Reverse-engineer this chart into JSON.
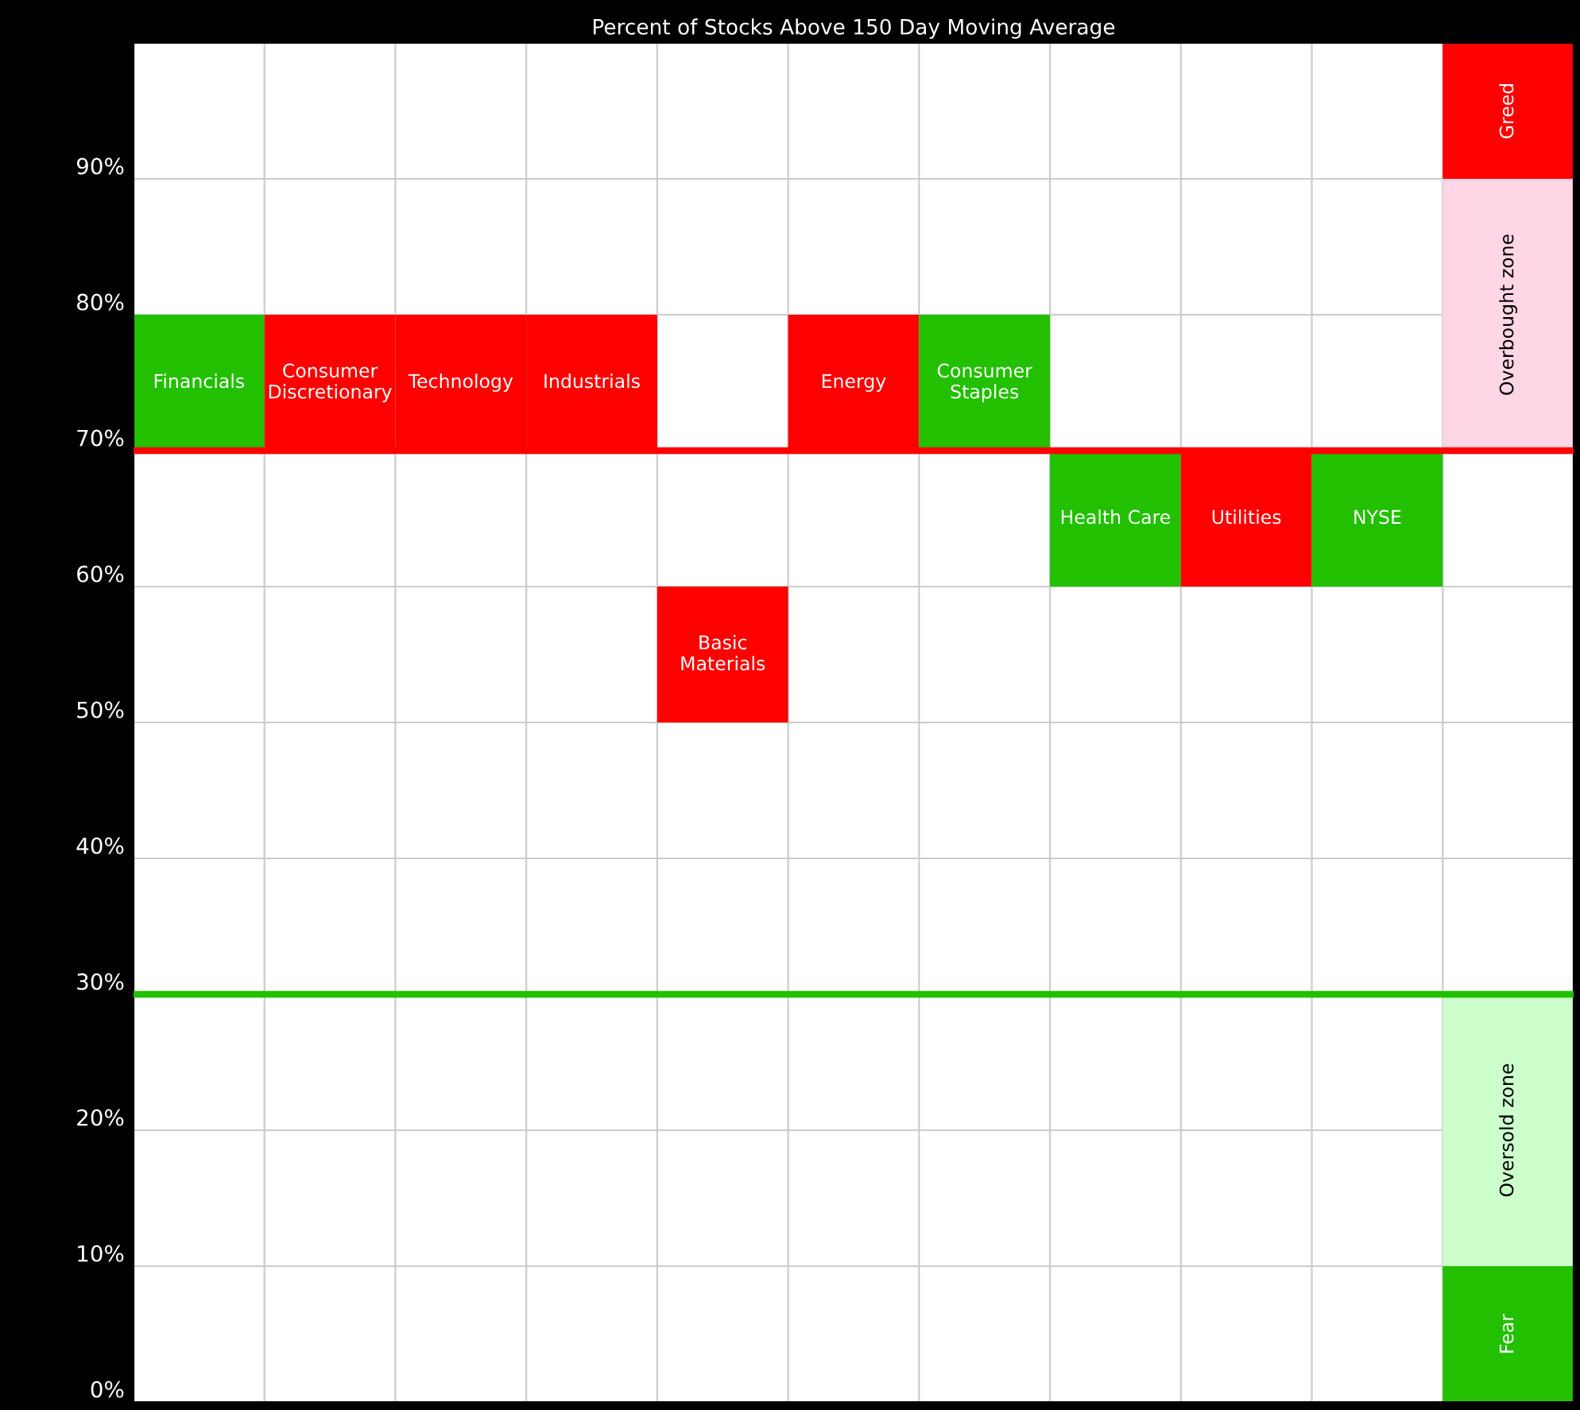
{
  "chart_data": {
    "type": "bar",
    "title": "Percent of Stocks Above 150 Day Moving Average",
    "categories": [
      null,
      null,
      null,
      null,
      null,
      null,
      null,
      null,
      null,
      null,
      null
    ],
    "series": [
      {
        "values": [
          10,
          10,
          10,
          10,
          10,
          10,
          10,
          10,
          10,
          10,
          null
        ],
        "base": [
          70,
          70,
          70,
          70,
          50,
          70,
          70,
          60,
          60,
          60,
          null
        ],
        "colors": [
          "#22c000",
          "#ff0000",
          "#ff0000",
          "#ff0000",
          "#ff0000",
          "#ff0000",
          "#22c000",
          "#22c000",
          "#ff0000",
          "#22c000",
          null
        ],
        "value_labels": [
          "Financials",
          "Consumer\nDiscretionary",
          "Technology",
          "Industrials",
          "Basic\nMaterials",
          "Energy",
          "Consumer\nStaples",
          "Health Care",
          "Utilities",
          "NYSE",
          null
        ]
      },
      {
        "values": [
          null,
          null,
          null,
          null,
          null,
          null,
          null,
          null,
          null,
          null,
          10
        ],
        "base": [
          null,
          null,
          null,
          null,
          null,
          null,
          null,
          null,
          null,
          null,
          0
        ],
        "color": "#22c000",
        "value_labels": [
          null,
          null,
          null,
          null,
          null,
          null,
          null,
          null,
          null,
          null,
          "Fear"
        ]
      },
      {
        "values": [
          null,
          null,
          null,
          null,
          null,
          null,
          null,
          null,
          null,
          null,
          20
        ],
        "base": [
          null,
          null,
          null,
          null,
          null,
          null,
          null,
          null,
          null,
          null,
          10
        ],
        "color": "#ccffcc",
        "value_labels": [
          null,
          null,
          null,
          null,
          null,
          null,
          null,
          null,
          null,
          null,
          "Oversold zone"
        ]
      },
      {
        "values": [
          null,
          null,
          null,
          null,
          null,
          null,
          null,
          null,
          null,
          null,
          20
        ],
        "base": [
          null,
          null,
          null,
          null,
          null,
          null,
          null,
          null,
          null,
          null,
          70
        ],
        "color": "#ffd6e6",
        "value_labels": [
          null,
          null,
          null,
          null,
          null,
          null,
          null,
          null,
          null,
          null,
          "Overbought zone"
        ]
      },
      {
        "values": [
          null,
          null,
          null,
          null,
          null,
          null,
          null,
          null,
          null,
          null,
          10
        ],
        "base": [
          null,
          null,
          null,
          null,
          null,
          null,
          null,
          null,
          null,
          null,
          90
        ],
        "color": "#ff0000",
        "value_labels": [
          null,
          null,
          null,
          null,
          null,
          null,
          null,
          null,
          null,
          null,
          "Greed"
        ]
      }
    ],
    "ylim": [
      0,
      100
    ],
    "yticks": [
      {
        "value": 0,
        "label": "0%"
      },
      {
        "value": 10,
        "label": "10%"
      },
      {
        "value": 20,
        "label": "20%"
      },
      {
        "value": 30,
        "label": "30%"
      },
      {
        "value": 40,
        "label": "40%"
      },
      {
        "value": 50,
        "label": "50%"
      },
      {
        "value": 60,
        "label": "60%"
      },
      {
        "value": 70,
        "label": "70%"
      },
      {
        "value": 80,
        "label": "80%"
      },
      {
        "value": 90,
        "label": "90%"
      }
    ],
    "ref_lines": [
      {
        "axis": "y",
        "value": 70,
        "color": "#ff0000"
      },
      {
        "axis": "y",
        "value": 30,
        "color": "#22c000"
      }
    ],
    "grid": true,
    "tick_labels": "y"
  }
}
